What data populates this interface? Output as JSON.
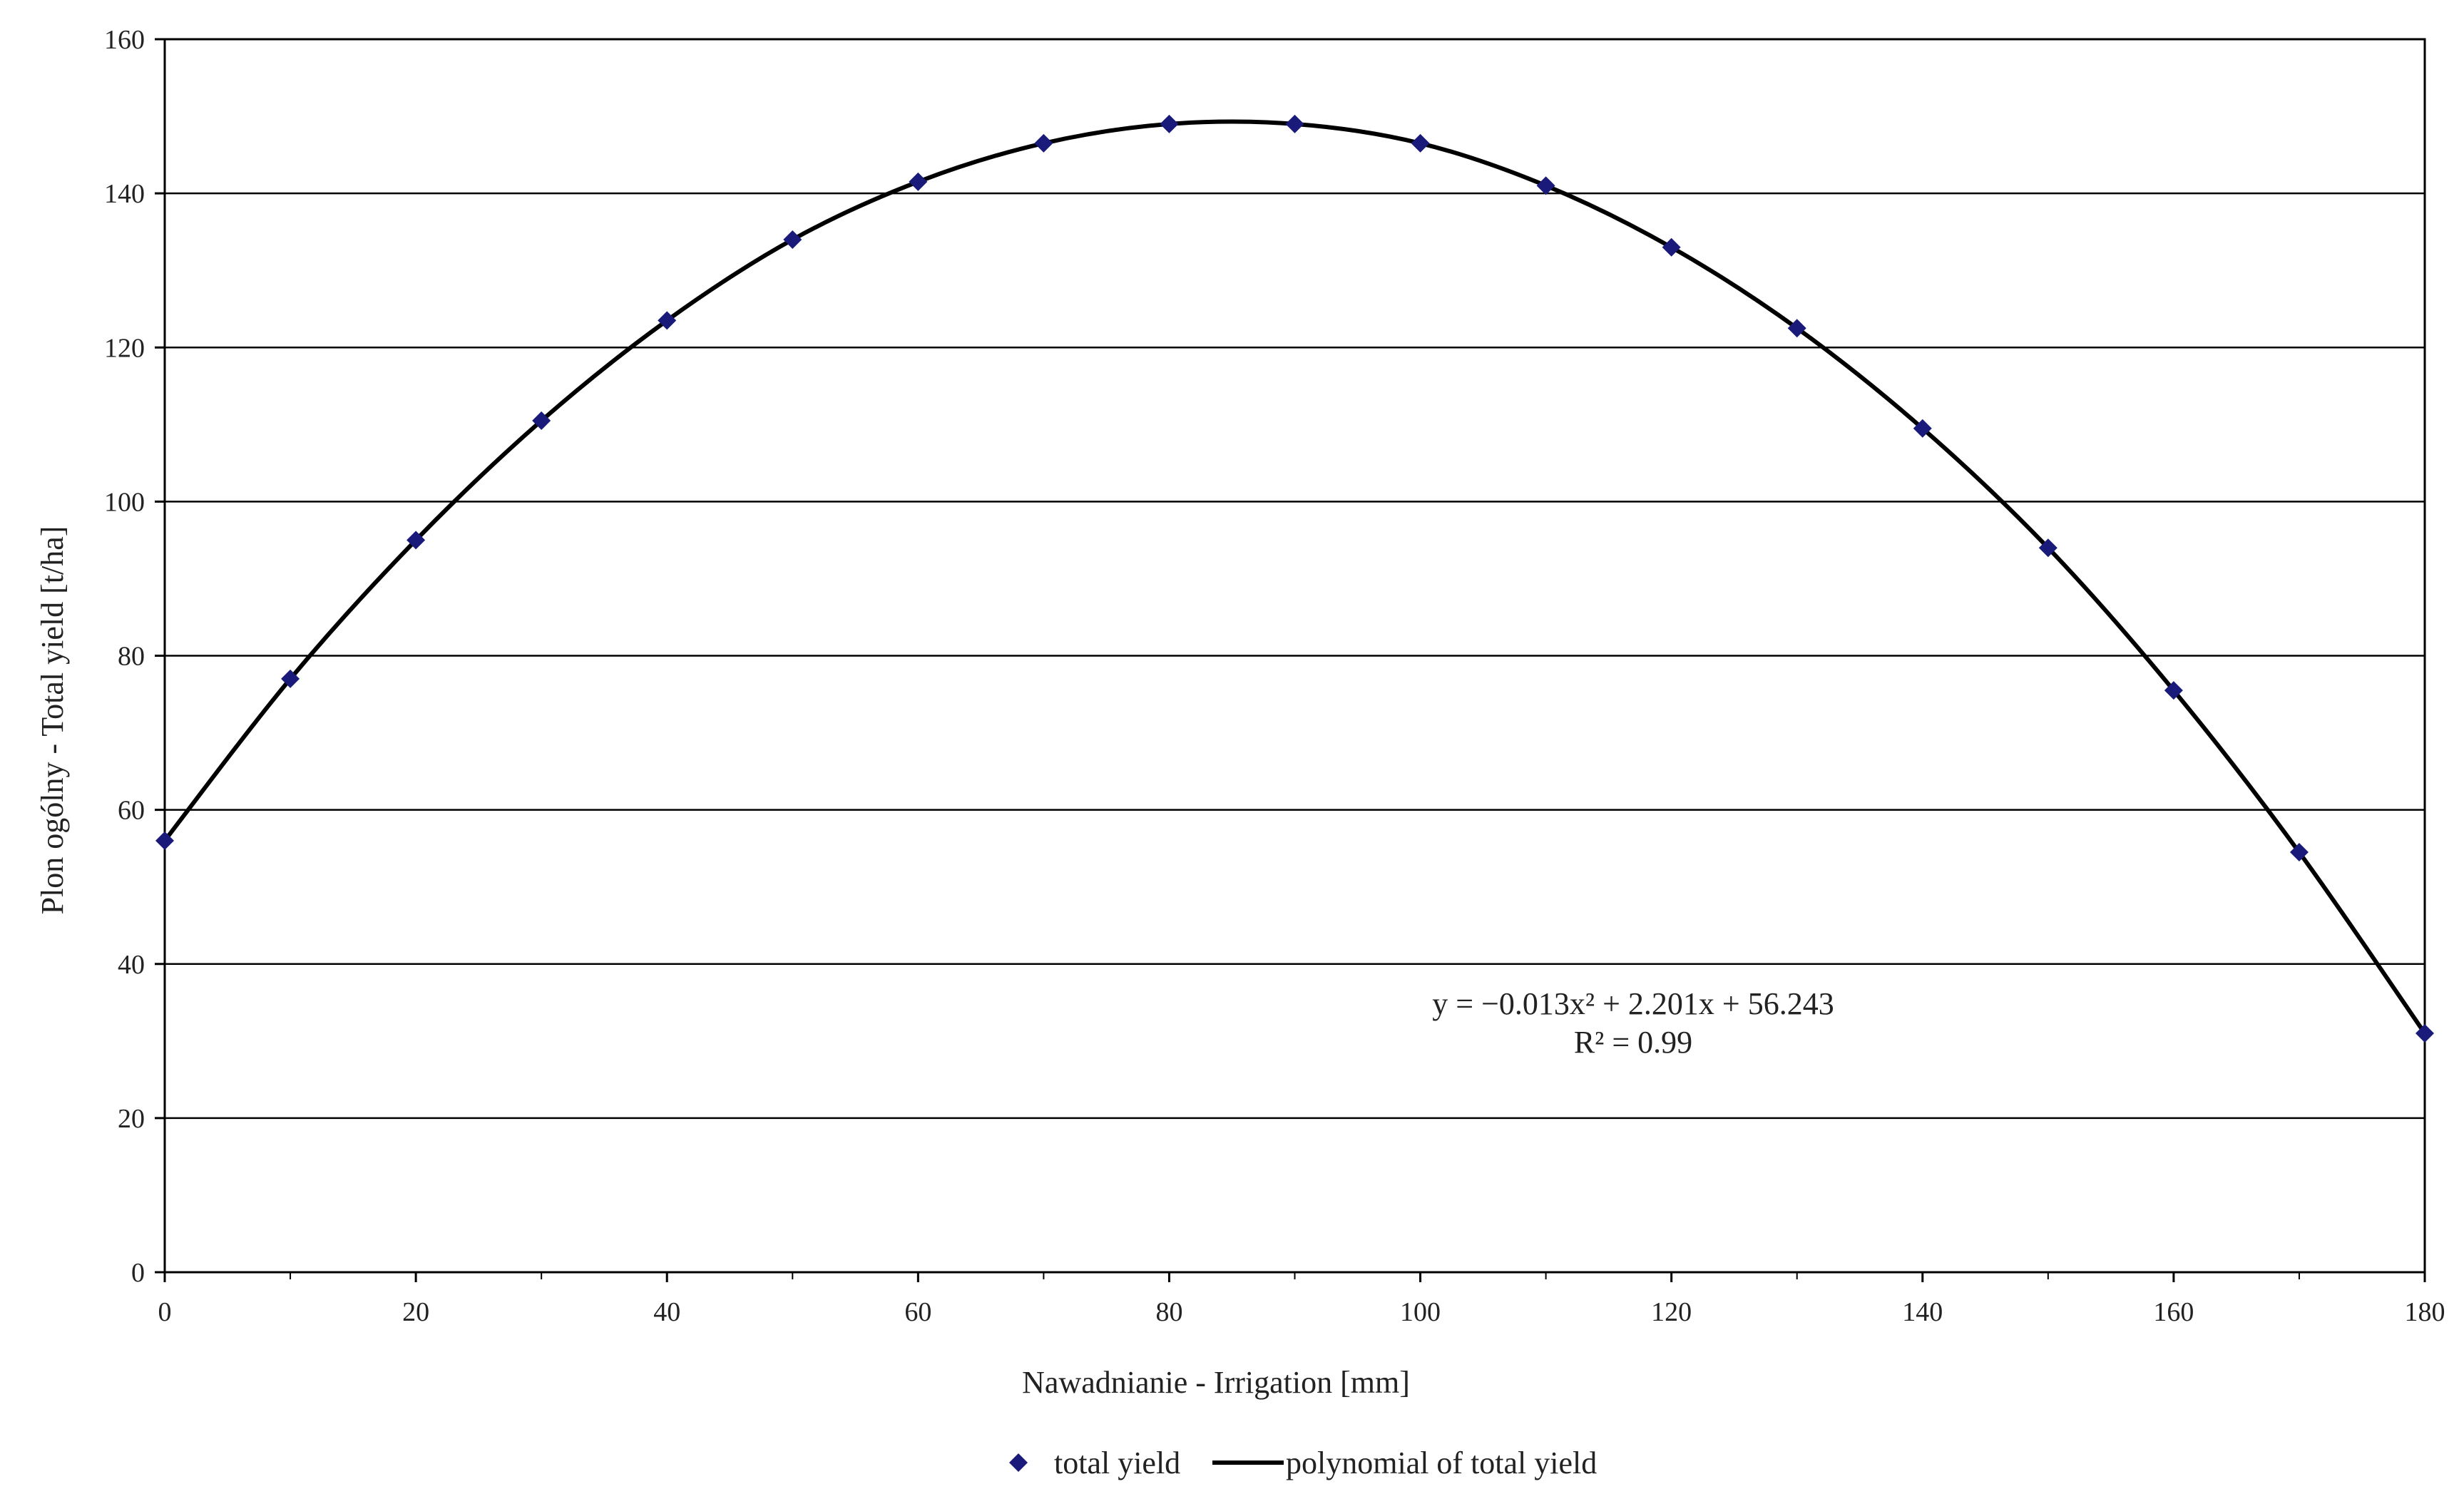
{
  "chart_data": {
    "type": "scatter",
    "title": "",
    "xlabel": "Nawadnianie - Irrigation [mm]",
    "ylabel": "Plon ogólny - Total yield [t/ha]",
    "xlim": [
      0,
      180
    ],
    "ylim": [
      0,
      160
    ],
    "xticks": [
      0,
      20,
      40,
      60,
      80,
      100,
      120,
      140,
      160,
      180
    ],
    "yticks": [
      0,
      20,
      40,
      60,
      80,
      100,
      120,
      140,
      160
    ],
    "grid": "horizontal",
    "legend_position": "bottom",
    "series": [
      {
        "name": "total yield",
        "type": "scatter",
        "marker": "diamond",
        "color": "#1a1a7a",
        "x": [
          0,
          10,
          20,
          30,
          40,
          50,
          60,
          70,
          80,
          90,
          100,
          110,
          120,
          130,
          140,
          150,
          160,
          170,
          180
        ],
        "y": [
          56,
          77,
          95,
          110.5,
          123.5,
          134,
          141.5,
          146.5,
          149,
          149,
          146.5,
          141,
          133,
          122.5,
          109.5,
          94,
          75.5,
          54.5,
          31
        ]
      },
      {
        "name": "polynomial of total yield",
        "type": "line",
        "color": "#000000",
        "coefficients": {
          "a": -0.013,
          "b": 2.201,
          "c": 56.243
        }
      }
    ],
    "annotations": {
      "equation": "y = −0.013x² + 2.201x + 56.243",
      "r_squared": "R² = 0.99"
    }
  }
}
